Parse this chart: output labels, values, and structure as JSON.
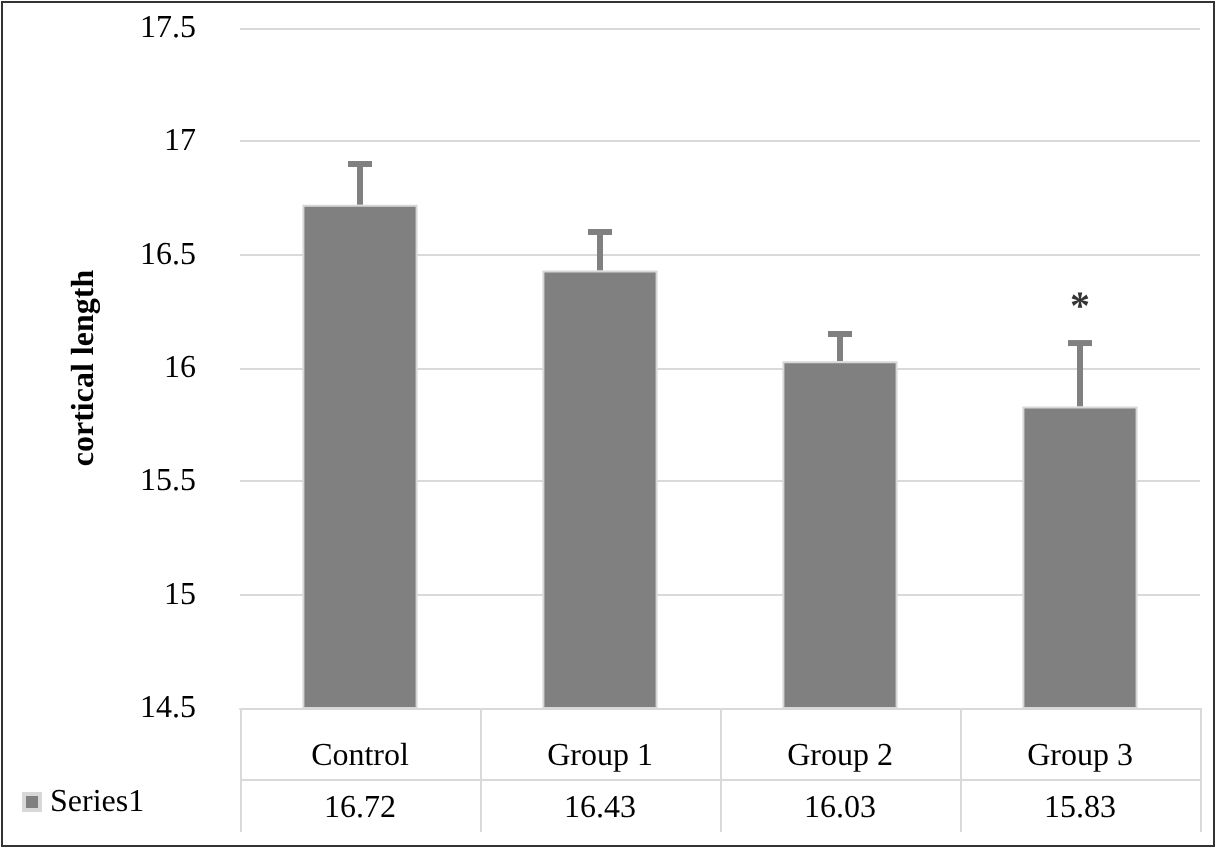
{
  "chart_data": {
    "type": "bar",
    "ylabel": "cortical length",
    "categories": [
      "Control",
      "Group 1",
      "Group 2",
      "Group 3"
    ],
    "series": [
      {
        "name": "Series1",
        "color": "#808080",
        "values": [
          16.72,
          16.43,
          16.03,
          15.83
        ],
        "errors": [
          [
            16.72,
            16.9
          ],
          [
            16.43,
            16.6
          ],
          [
            16.03,
            16.15
          ],
          [
            15.83,
            16.11
          ]
        ]
      }
    ],
    "ylim": [
      14.5,
      17.5
    ],
    "yticks": [
      14.5,
      15,
      15.5,
      16,
      16.5,
      17,
      17.5
    ],
    "grid": "y",
    "legend": "bottom left",
    "data_labels": true,
    "annotations": [
      "*"
    ]
  }
}
